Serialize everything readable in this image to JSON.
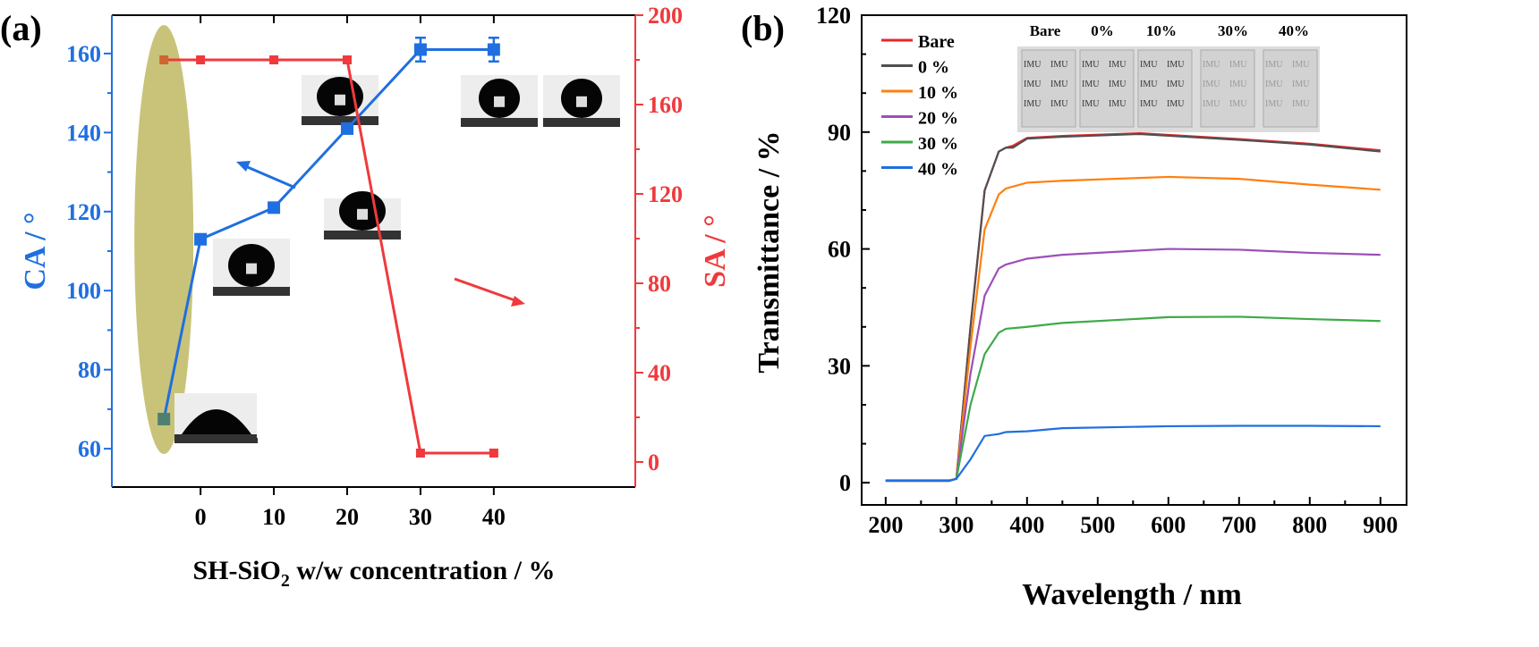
{
  "chart_data": [
    {
      "panel_label": "(a)",
      "type": "line",
      "xlabel_parts": [
        "SH-SiO",
        "2",
        " w/w concentration / %"
      ],
      "ylabel": "CA / °",
      "y2label": "SA / °",
      "xlim": [
        -12.1,
        59.3
      ],
      "ylim": [
        50.3,
        169.7
      ],
      "y2lim": [
        -11.2,
        200
      ],
      "xticks": [
        0,
        10,
        20,
        30,
        40
      ],
      "yticks": [
        60,
        80,
        100,
        120,
        140,
        160
      ],
      "y2ticks": [
        0,
        40,
        80,
        120,
        160,
        200
      ],
      "grid": false,
      "colors": {
        "ca": "#1f6fe0",
        "sa": "#f0393c",
        "highlight": "#c9c37a"
      },
      "series": [
        {
          "axis": "left",
          "x": [
            -5,
            0,
            10,
            20,
            30,
            40
          ],
          "values": [
            67.5,
            113,
            121,
            141,
            161,
            161
          ],
          "error": [
            0,
            0,
            0,
            0,
            3,
            3
          ]
        },
        {
          "axis": "right",
          "x": [
            -5,
            0,
            10,
            20,
            30,
            40
          ],
          "values": [
            180,
            180,
            180,
            180,
            4,
            4
          ]
        }
      ]
    },
    {
      "panel_label": "(b)",
      "type": "line",
      "xlabel": "Wavelength / nm",
      "ylabel": "Transmittance / %",
      "xlim": [
        166,
        937
      ],
      "ylim": [
        -5.7,
        120
      ],
      "xticks": [
        200,
        300,
        400,
        500,
        600,
        700,
        800,
        900
      ],
      "yticks": [
        0,
        30,
        60,
        90,
        120
      ],
      "grid": false,
      "legend": "top-left",
      "series": [
        {
          "name": "Bare",
          "color": "#e8262b",
          "x": [
            200,
            290,
            300,
            320,
            340,
            360,
            370,
            380,
            400,
            450,
            560,
            700,
            800,
            900
          ],
          "values": [
            0.5,
            0.5,
            1,
            40,
            75,
            85,
            86,
            86.5,
            88.5,
            89,
            89.7,
            88.2,
            87,
            85.3
          ]
        },
        {
          "name": "0 %",
          "color": "#505050",
          "x": [
            200,
            290,
            300,
            320,
            340,
            360,
            370,
            380,
            400,
            450,
            560,
            700,
            800,
            900
          ],
          "values": [
            0.6,
            0.6,
            1,
            40,
            75,
            85,
            86,
            86,
            88.3,
            88.8,
            89.5,
            88,
            86.8,
            85
          ]
        },
        {
          "name": "10 %",
          "color": "#ff7f0e",
          "x": [
            200,
            290,
            300,
            320,
            340,
            360,
            370,
            400,
            450,
            600,
            700,
            800,
            900
          ],
          "values": [
            0.5,
            0.5,
            1,
            35,
            65,
            74,
            75.5,
            77,
            77.5,
            78.5,
            78,
            76.5,
            75.2
          ]
        },
        {
          "name": "20 %",
          "color": "#9c4fb8",
          "x": [
            200,
            290,
            300,
            320,
            340,
            360,
            370,
            400,
            450,
            600,
            700,
            800,
            900
          ],
          "values": [
            0.5,
            0.5,
            1,
            28,
            48,
            55,
            56,
            57.5,
            58.5,
            60,
            59.8,
            59,
            58.5
          ]
        },
        {
          "name": "30 %",
          "color": "#3eaa48",
          "x": [
            200,
            290,
            300,
            320,
            340,
            360,
            370,
            400,
            450,
            600,
            700,
            800,
            900
          ],
          "values": [
            0.5,
            0.5,
            1,
            20,
            33,
            38.5,
            39.5,
            40,
            41,
            42.5,
            42.6,
            42,
            41.5
          ]
        },
        {
          "name": "40 %",
          "color": "#1f6fe0",
          "x": [
            200,
            290,
            300,
            320,
            340,
            360,
            370,
            400,
            450,
            600,
            700,
            800,
            900
          ],
          "values": [
            0.5,
            0.5,
            1,
            6,
            12,
            12.5,
            13,
            13.2,
            14,
            14.5,
            14.6,
            14.6,
            14.5
          ]
        }
      ],
      "inset": {
        "labels": [
          "Bare",
          "0%",
          "10%",
          "30%",
          "40%"
        ],
        "photo_text": "IMU"
      }
    }
  ]
}
